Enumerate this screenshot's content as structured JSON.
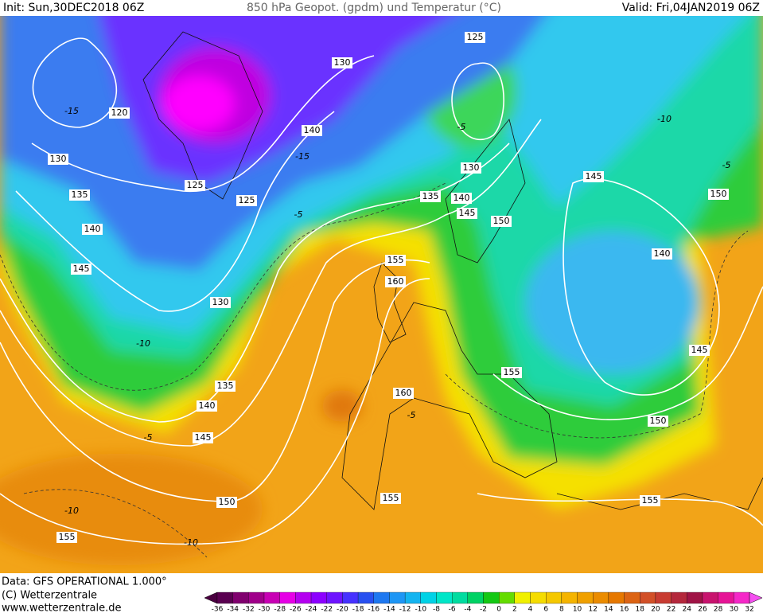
{
  "header": {
    "init": "Init: Sun,30DEC2018 06Z",
    "title": "850 hPa Geopot. (gpdm) und Temperatur (°C)",
    "valid": "Valid: Fri,04JAN2019 06Z"
  },
  "footer": {
    "data": "Data: GFS OPERATIONAL 1.000°",
    "copyright": "(C) Wetterzentrale",
    "url": "www.wetterzentrale.de"
  },
  "map": {
    "geopotential_labels": [
      120,
      125,
      130,
      140,
      130,
      125,
      125,
      135,
      140,
      145,
      130,
      130,
      135,
      140,
      145,
      150,
      145,
      150,
      155,
      160,
      140,
      145,
      155,
      160,
      135,
      140,
      145,
      150,
      155,
      150,
      155,
      155
    ],
    "temperature_labels": [
      -15,
      -10,
      -5,
      -10,
      -5,
      -10,
      -10,
      -5,
      -15,
      -5,
      -5
    ]
  },
  "colorbar": {
    "ticks": [
      -36,
      -34,
      -32,
      -30,
      -28,
      -26,
      -24,
      -22,
      -20,
      -18,
      -16,
      -14,
      -12,
      -10,
      -8,
      -6,
      -4,
      -2,
      0,
      2,
      4,
      6,
      8,
      10,
      12,
      14,
      16,
      18,
      20,
      22,
      24,
      26,
      28,
      30,
      32
    ],
    "colors": [
      "#4a0040",
      "#5a0050",
      "#80006e",
      "#a0008a",
      "#c800b4",
      "#e600e6",
      "#b400f0",
      "#8c00ff",
      "#6e14ff",
      "#4632ff",
      "#2850f0",
      "#1e78f0",
      "#1e96f5",
      "#14b4f0",
      "#00d2e6",
      "#00e6c8",
      "#00dca0",
      "#00d264",
      "#14c814",
      "#64dc00",
      "#f0f000",
      "#f5dc00",
      "#f5c800",
      "#f5b400",
      "#f0a000",
      "#eb8c00",
      "#e67800",
      "#dc6414",
      "#d25028",
      "#c83c32",
      "#b4283c",
      "#a01446",
      "#c8146e",
      "#e61496",
      "#f528c8",
      "#f550f0"
    ]
  }
}
